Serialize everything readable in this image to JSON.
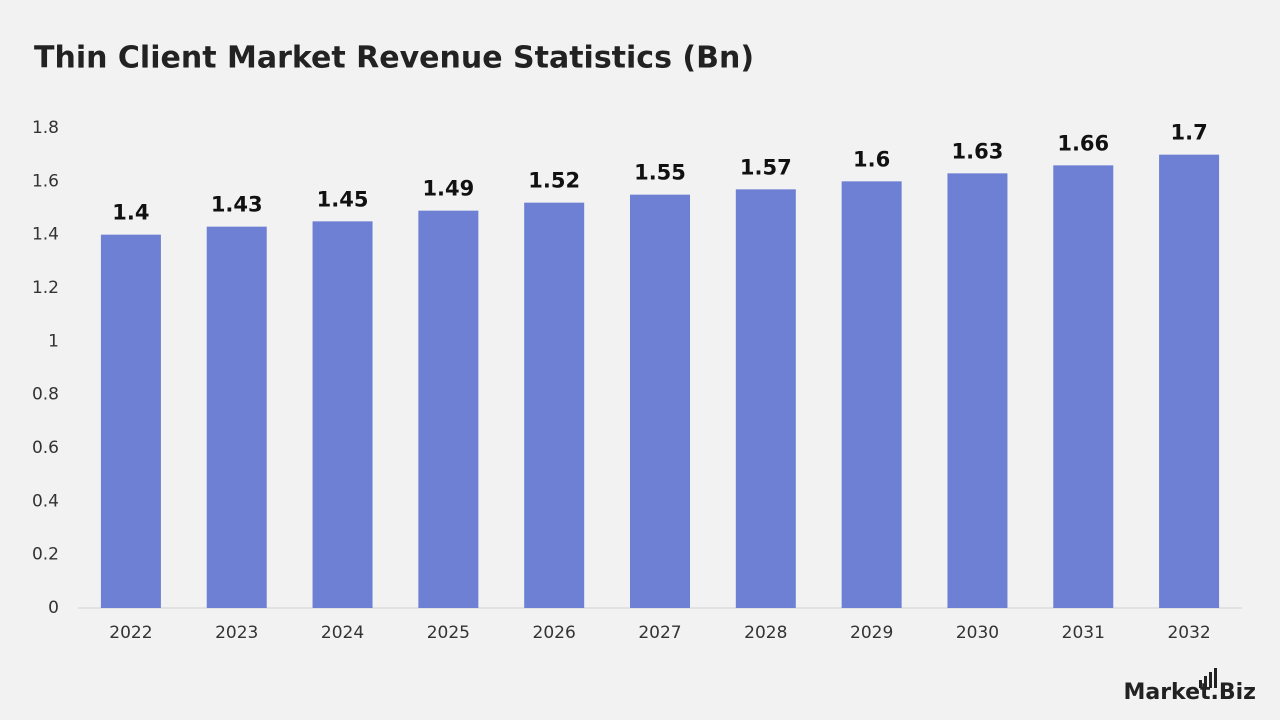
{
  "chart_data": {
    "type": "bar",
    "title": "Thin Client Market Revenue Statistics (Bn)",
    "categories": [
      "2022",
      "2023",
      "2024",
      "2025",
      "2026",
      "2027",
      "2028",
      "2029",
      "2030",
      "2031",
      "2032"
    ],
    "values": [
      1.4,
      1.43,
      1.45,
      1.49,
      1.52,
      1.55,
      1.57,
      1.6,
      1.63,
      1.66,
      1.7
    ],
    "color": "#6e80d4",
    "ylim": [
      0,
      1.8
    ],
    "yticks": [
      0,
      0.2,
      0.4,
      0.6,
      0.8,
      1,
      1.2,
      1.4,
      1.6,
      1.8
    ],
    "grid": false
  },
  "logo": "Market.Biz"
}
